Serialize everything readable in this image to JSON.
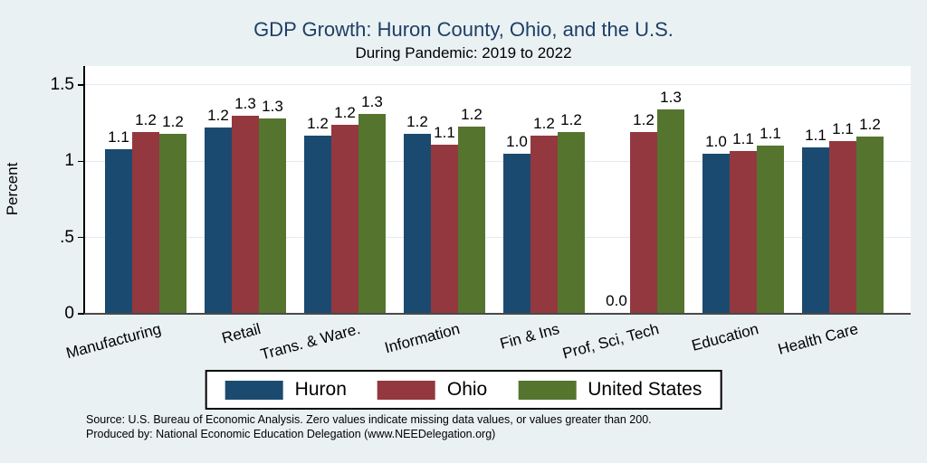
{
  "title": "GDP Growth: Huron County, Ohio, and the U.S.",
  "subtitle": "During Pandemic: 2019 to 2022",
  "colors": {
    "background": "#e9f1f3",
    "plot_background": "#ffffff",
    "title_text": "#1e3f66",
    "gridline": "#e2ebf2",
    "y_axis": "#000000",
    "x_axis_line": "#4a4a4a",
    "huron": "#1b4a70",
    "ohio": "#93383f",
    "united_states": "#55752f"
  },
  "chart_data": {
    "type": "bar",
    "title": "GDP Growth: Huron County, Ohio, and the U.S.",
    "subtitle": "During Pandemic: 2019 to 2022",
    "xlabel": "",
    "ylabel": "Percent",
    "ylim": [
      0,
      1.62
    ],
    "grid": true,
    "legend_position": "bottom",
    "yticks": [
      {
        "label": "0",
        "value": 0
      },
      {
        "label": ".5",
        "value": 0.5
      },
      {
        "label": "1",
        "value": 1
      },
      {
        "label": "1.5",
        "value": 1.5
      }
    ],
    "categories": [
      "Manufacturing",
      "Retail",
      "Trans. & Ware.",
      "Information",
      "Fin & Ins",
      "Prof, Sci, Tech",
      "Education",
      "Health Care"
    ],
    "series": [
      {
        "name": "Huron",
        "color": "#1b4a70",
        "values": [
          1.08,
          1.22,
          1.17,
          1.18,
          1.05,
          0.0,
          1.05,
          1.09
        ],
        "labels": [
          "1.1",
          "1.2",
          "1.2",
          "1.2",
          "1.0",
          "0.0",
          "1.0",
          "1.1"
        ]
      },
      {
        "name": "Ohio",
        "color": "#93383f",
        "values": [
          1.19,
          1.3,
          1.24,
          1.11,
          1.17,
          1.19,
          1.07,
          1.13
        ],
        "labels": [
          "1.2",
          "1.3",
          "1.2",
          "1.1",
          "1.2",
          "1.2",
          "1.1",
          "1.1"
        ]
      },
      {
        "name": "United States",
        "color": "#55752f",
        "values": [
          1.18,
          1.28,
          1.31,
          1.23,
          1.19,
          1.34,
          1.1,
          1.16
        ],
        "labels": [
          "1.2",
          "1.3",
          "1.3",
          "1.2",
          "1.2",
          "1.3",
          "1.1",
          "1.2"
        ]
      }
    ]
  },
  "footnotes": [
    "Source: U.S. Bureau of Economic Analysis. Zero values indicate missing data values, or values greater than 200.",
    "Produced by: National Economic Education Delegation (www.NEEDelegation.org)"
  ]
}
